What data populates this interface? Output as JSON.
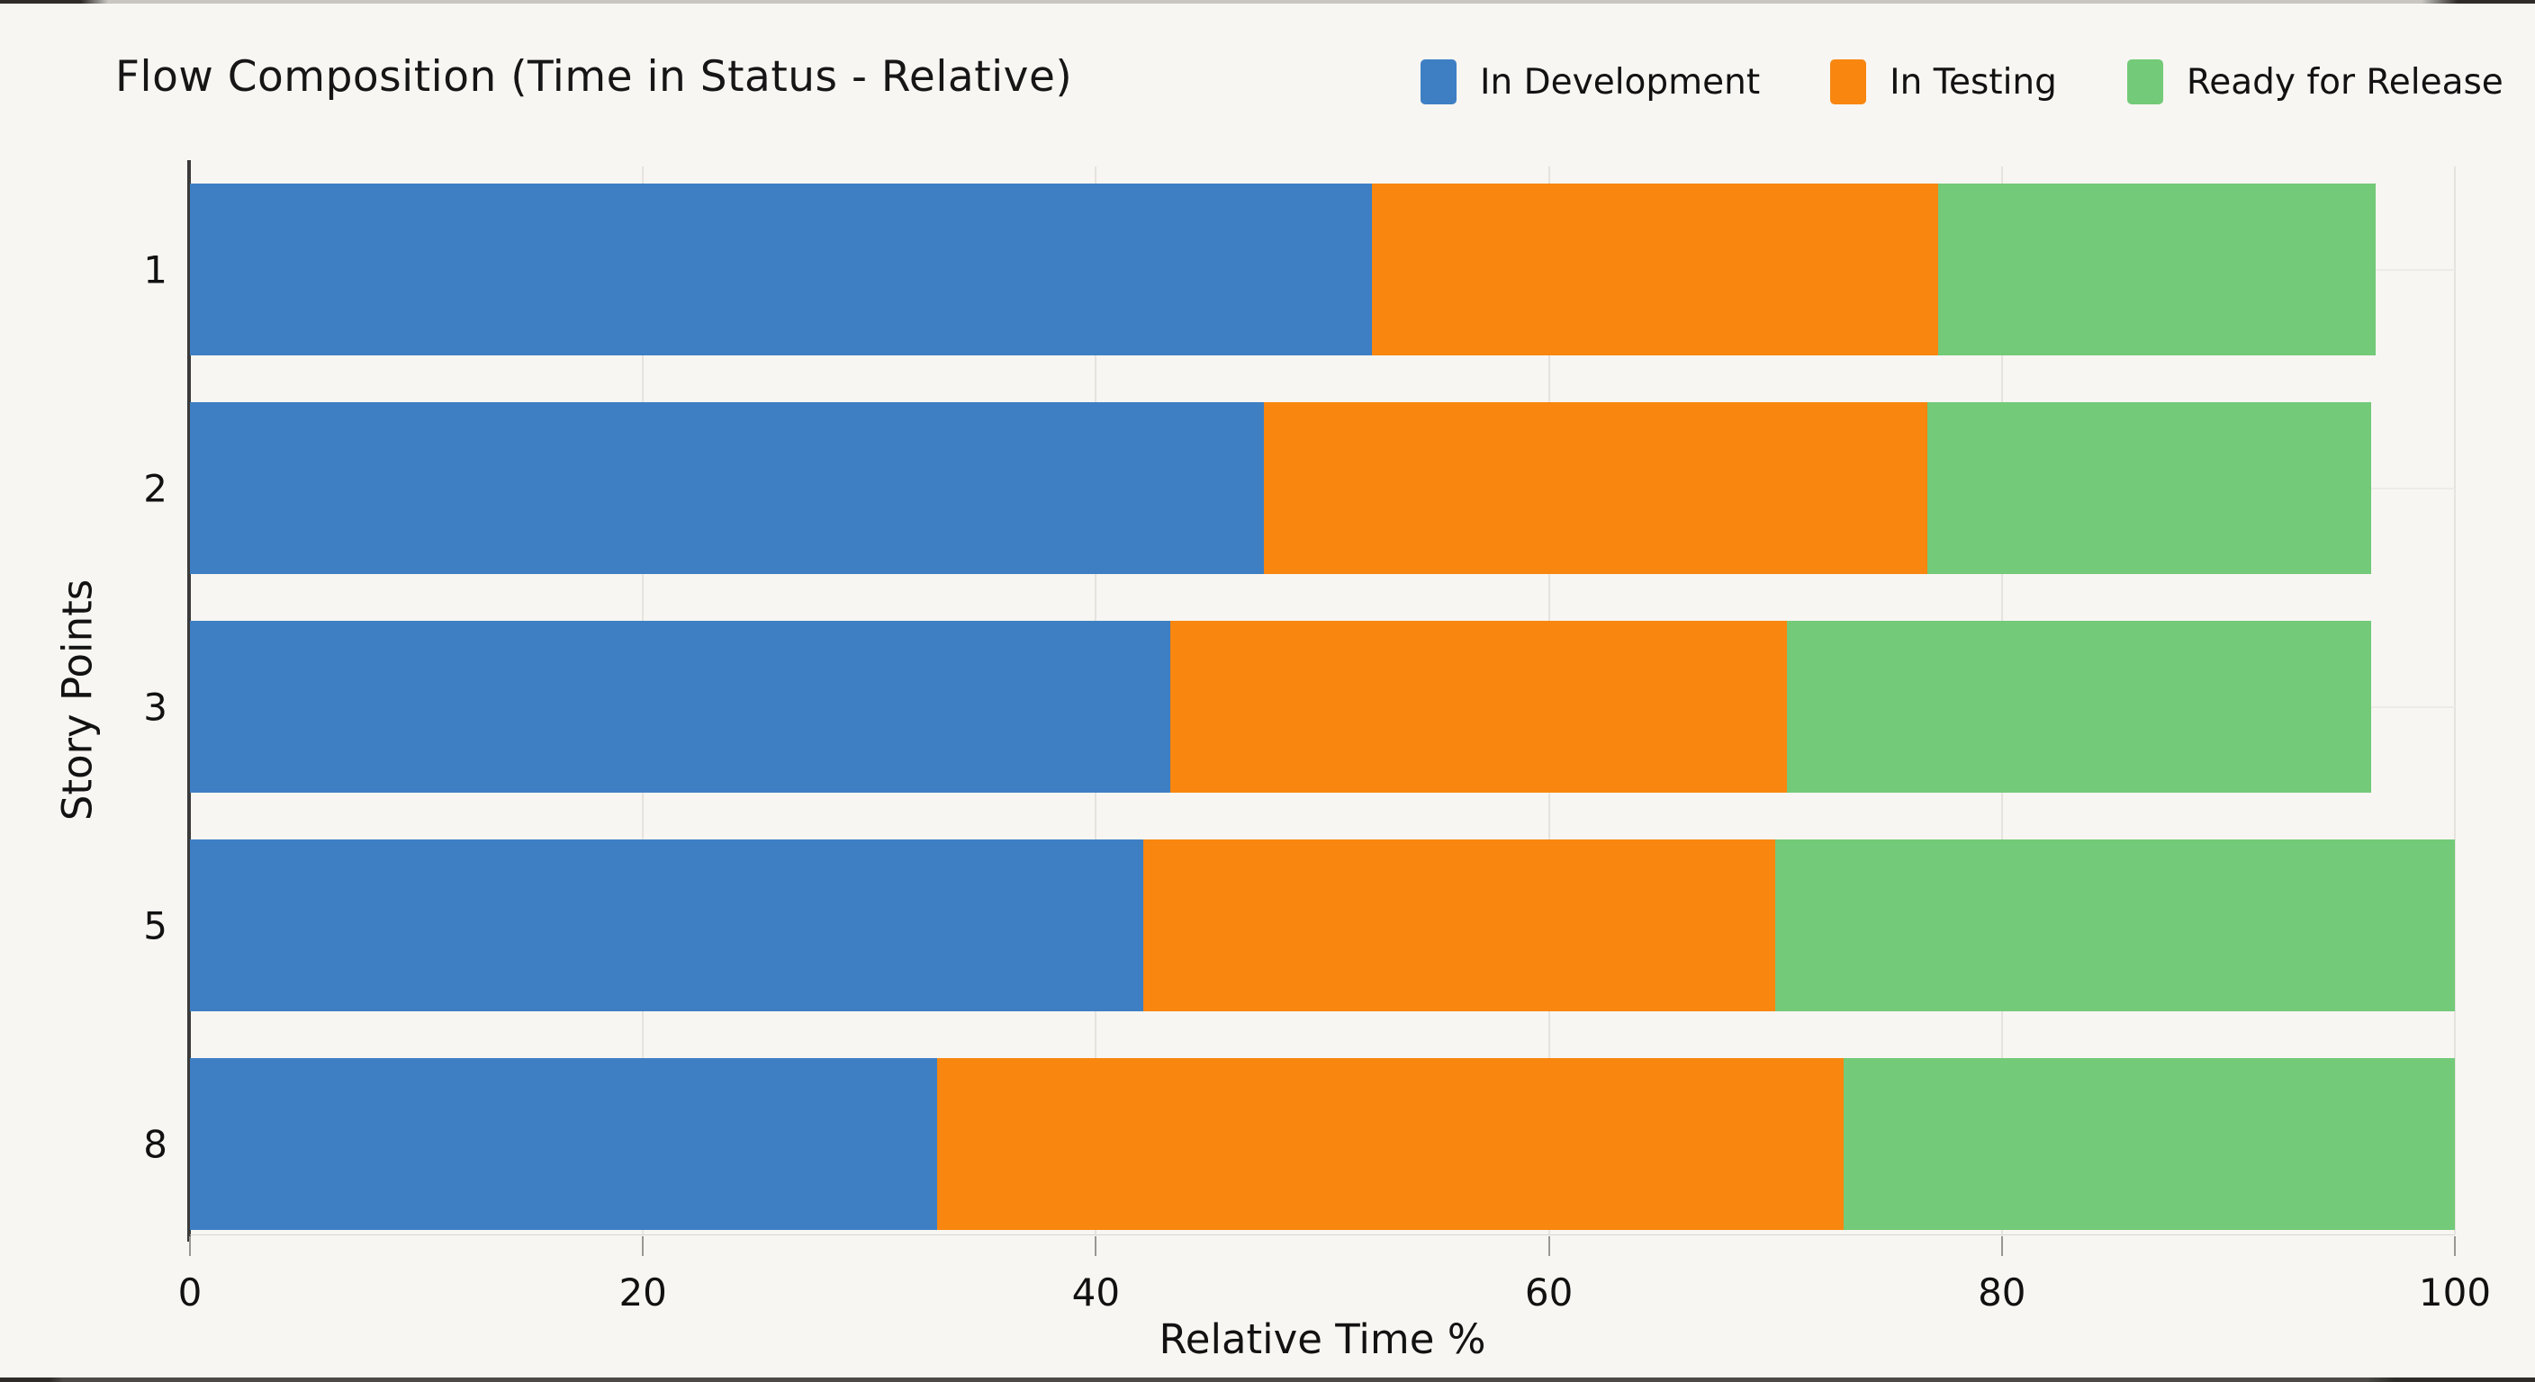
{
  "chart_data": {
    "type": "bar",
    "orientation": "horizontal",
    "stacked": true,
    "title": "Flow Composition (Time in Status - Relative)",
    "xlabel": "Relative Time %",
    "ylabel": "Story Points",
    "categories": [
      "1",
      "2",
      "3",
      "5",
      "8"
    ],
    "series": [
      {
        "name": "In Development",
        "color": "#3e7fc4",
        "values": [
          52.2,
          47.4,
          43.3,
          42.1,
          33.0
        ]
      },
      {
        "name": "In Testing",
        "color": "#f8860f",
        "values": [
          25.0,
          29.3,
          27.2,
          27.9,
          40.0
        ]
      },
      {
        "name": "Ready for Release",
        "color": "#73ca78",
        "values": [
          19.3,
          19.6,
          25.8,
          30.0,
          27.0
        ]
      }
    ],
    "xlim": [
      0,
      100
    ],
    "xticks": [
      0,
      20,
      40,
      60,
      80,
      100
    ],
    "grid": true,
    "legend_position": "top-right",
    "colors": {
      "background": "#f8f6f2",
      "in_development": "#3e7fc4",
      "in_testing": "#f8860f",
      "ready_for_release": "#73ca78",
      "axis_spine": "#3a3a3a",
      "gridline": "#e6e3de",
      "text": "#141414"
    }
  }
}
